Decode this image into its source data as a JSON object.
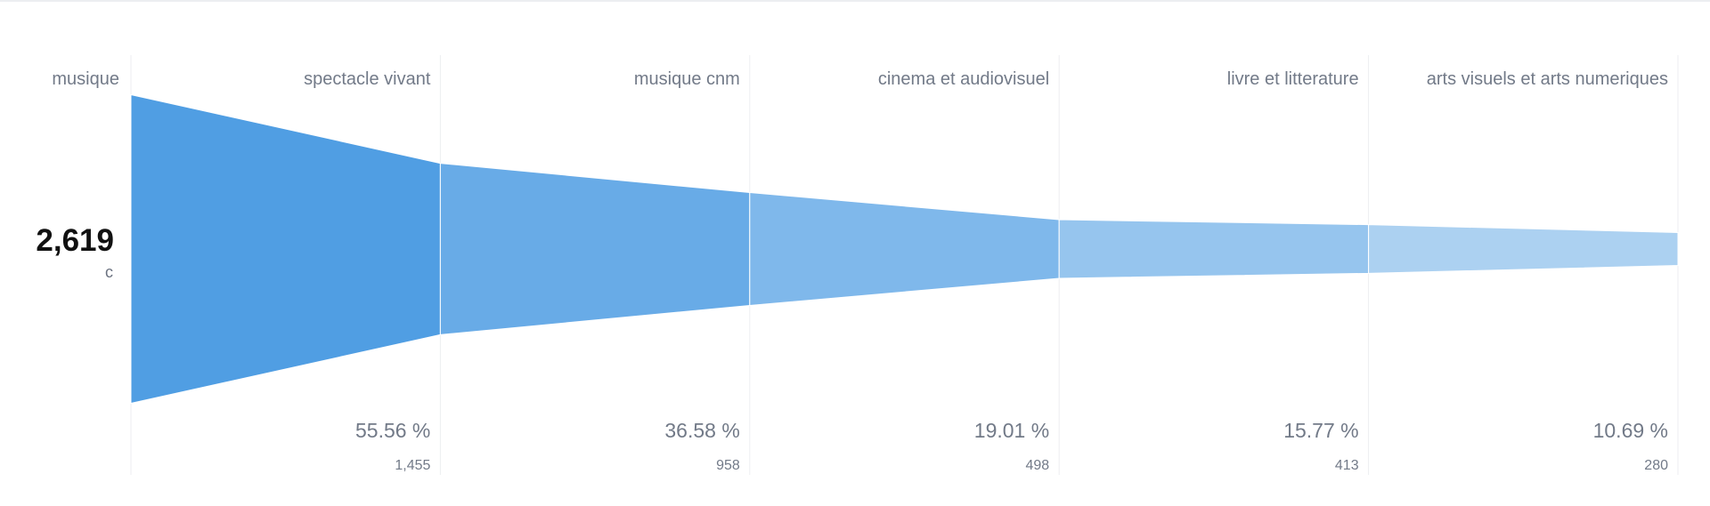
{
  "first_step": {
    "label": "musique",
    "value_label": "2,619",
    "unit": "c"
  },
  "chart_data": {
    "type": "funnel",
    "steps": [
      {
        "label": "musique",
        "value": 2619,
        "value_label": "2,619",
        "percent": 100
      },
      {
        "label": "spectacle vivant",
        "value": 1455,
        "value_label": "1,455",
        "percent_label": "55.56 %",
        "percent": 55.56
      },
      {
        "label": "musique cnm",
        "value": 958,
        "value_label": "958",
        "percent_label": "36.58 %",
        "percent": 36.58
      },
      {
        "label": "cinema et audiovisuel",
        "value": 498,
        "value_label": "498",
        "percent_label": "19.01 %",
        "percent": 19.01
      },
      {
        "label": "livre et litterature",
        "value": 413,
        "value_label": "413",
        "percent_label": "15.77 %",
        "percent": 15.77
      },
      {
        "label": "arts visuels et arts numeriques",
        "value": 280,
        "value_label": "280",
        "percent_label": "10.69 %",
        "percent": 10.69
      }
    ],
    "colors": [
      "#509ee3",
      "#68abe7",
      "#7fb8eb",
      "#96c5ee",
      "#acd1f1"
    ]
  }
}
